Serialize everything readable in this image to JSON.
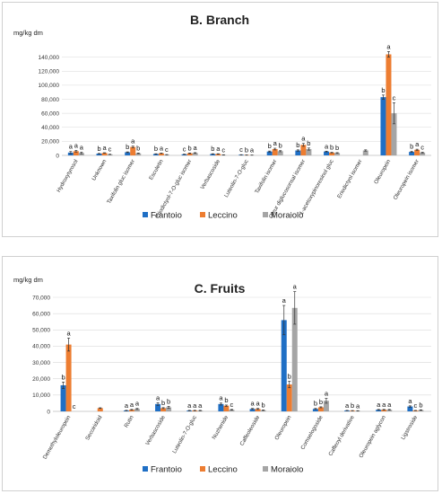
{
  "chart_data": [
    {
      "type": "bar",
      "panel_letter": "B.",
      "title": "Branch",
      "ylabel": "mg/kg dm",
      "ylim": [
        0,
        160000
      ],
      "yticks": [
        0,
        20000,
        40000,
        60000,
        80000,
        100000,
        120000,
        140000
      ],
      "ytick_labels": [
        "0",
        "20,000",
        "40,000",
        "60,000",
        "80,000",
        "100,000",
        "120,000",
        "140,000"
      ],
      "grid": true,
      "legend_position": "bottom",
      "categories": [
        "Hydroxytyrosol",
        "Unknown",
        "Taxifolin gluc isomer",
        "Esculetin",
        "Eriodictyol-7-O-gluc isomer",
        "Verbascoside",
        "Luteolin-7-O-gluc",
        "Taxifolin isomer",
        "Oleur diglucosonsal isomer",
        "1-acetoxypinoresinol gluc",
        "Eriodictyol isomer",
        "Oleuropein",
        "Oleuropein isomer"
      ],
      "series": [
        {
          "name": "Frantoio",
          "color": "#1f6fc5",
          "values": [
            4000,
            2500,
            4500,
            2000,
            1500,
            2000,
            800,
            5500,
            7000,
            5500,
            0,
            83000,
            5000
          ],
          "errors": [
            1500,
            300,
            500,
            300,
            300,
            300,
            200,
            700,
            900,
            500,
            0,
            3000,
            600
          ]
        },
        {
          "name": "Leccino",
          "color": "#ed7d31",
          "values": [
            6000,
            3500,
            12000,
            3000,
            3000,
            2000,
            500,
            9000,
            15000,
            4000,
            0,
            144000,
            8000
          ],
          "errors": [
            1200,
            300,
            1200,
            300,
            400,
            300,
            150,
            1200,
            2000,
            400,
            0,
            4000,
            800
          ]
        },
        {
          "name": "Moraiolo",
          "color": "#a5a5a5",
          "values": [
            3500,
            1500,
            3000,
            1000,
            3500,
            700,
            400,
            6000,
            9000,
            3500,
            7000,
            60000,
            4000
          ],
          "errors": [
            1200,
            200,
            400,
            200,
            400,
            200,
            100,
            800,
            1500,
            400,
            900,
            15000,
            500
          ]
        }
      ],
      "letters": [
        [
          "a",
          "a",
          "a"
        ],
        [
          "b",
          "a",
          "c"
        ],
        [
          "b",
          "a",
          "b"
        ],
        [
          "b",
          "a",
          "c"
        ],
        [
          "c",
          "b",
          "a"
        ],
        [
          "b",
          "a",
          "c"
        ],
        [
          "c",
          "b",
          "a"
        ],
        [
          "b",
          "a",
          "b"
        ],
        [
          "b",
          "a",
          "b"
        ],
        [
          "a",
          "b",
          "b"
        ],
        [
          "",
          "",
          ""
        ],
        [
          "b",
          "a",
          "c"
        ],
        [
          "b",
          "a",
          "c"
        ]
      ]
    },
    {
      "type": "bar",
      "panel_letter": "C.",
      "title": "Fruits",
      "ylabel": "mg/kg dm",
      "ylim": [
        0,
        70000
      ],
      "yticks": [
        0,
        10000,
        20000,
        30000,
        40000,
        50000,
        60000,
        70000
      ],
      "ytick_labels": [
        "0",
        "10,000",
        "20,000",
        "30,000",
        "40,000",
        "50,000",
        "60,000",
        "70,000"
      ],
      "grid": true,
      "legend_position": "bottom",
      "categories": [
        "Demethyloleuropein",
        "Secoiridoid",
        "Rutin",
        "Verbascoside",
        "Luteolin-7-O-gluc",
        "Nuzhenide",
        "Caffeoleoside",
        "Oleuropein",
        "Comselogoside",
        "Caffeoyl derivative",
        "Oleuropein aglycon",
        "Ligstroside"
      ],
      "series": [
        {
          "name": "Frantoio",
          "color": "#1f6fc5",
          "values": [
            16000,
            0,
            500,
            4500,
            500,
            4500,
            1500,
            56000,
            1500,
            500,
            1000,
            3000
          ],
          "errors": [
            2000,
            0,
            150,
            800,
            150,
            600,
            300,
            9000,
            300,
            100,
            200,
            400
          ]
        },
        {
          "name": "Leccino",
          "color": "#ed7d31",
          "values": [
            41000,
            2000,
            1000,
            2000,
            500,
            3500,
            1500,
            16500,
            2500,
            400,
            1000,
            500
          ],
          "errors": [
            4000,
            200,
            200,
            300,
            150,
            400,
            300,
            2000,
            300,
            100,
            200,
            100
          ]
        },
        {
          "name": "Moraiolo",
          "color": "#a5a5a5",
          "values": [
            0,
            0,
            1500,
            2500,
            500,
            1000,
            700,
            63500,
            6500,
            300,
            1000,
            800
          ],
          "errors": [
            0,
            0,
            300,
            600,
            150,
            200,
            150,
            10000,
            1500,
            100,
            200,
            150
          ]
        }
      ],
      "letters": [
        [
          "b",
          "a",
          "c"
        ],
        [
          "",
          "",
          ""
        ],
        [
          "a",
          "a",
          "a"
        ],
        [
          "a",
          "b",
          "b"
        ],
        [
          "a",
          "a",
          "a"
        ],
        [
          "a",
          "b",
          "c"
        ],
        [
          "a",
          "a",
          "b"
        ],
        [
          "a",
          "b",
          "a"
        ],
        [
          "b",
          "b",
          "a"
        ],
        [
          "a",
          "b",
          "a"
        ],
        [
          "a",
          "a",
          "a"
        ],
        [
          "a",
          "c",
          "b"
        ]
      ]
    }
  ]
}
